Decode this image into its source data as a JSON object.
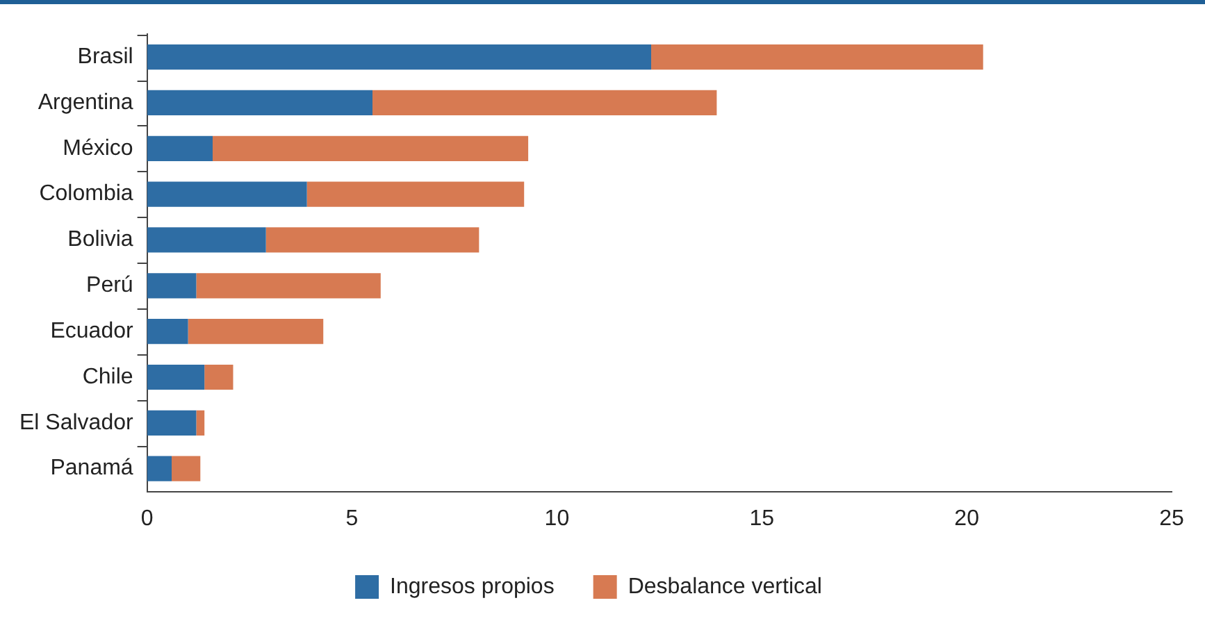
{
  "chart_data": {
    "type": "bar",
    "orientation": "horizontal",
    "stacked": true,
    "categories": [
      "Brasil",
      "Argentina",
      "México",
      "Colombia",
      "Bolivia",
      "Perú",
      "Ecuador",
      "Chile",
      "El Salvador",
      "Panamá"
    ],
    "series": [
      {
        "name": "Ingresos propios",
        "color": "#2e6da4",
        "values": [
          12.3,
          5.5,
          1.6,
          3.9,
          2.9,
          1.2,
          1.0,
          1.4,
          1.2,
          0.6
        ]
      },
      {
        "name": "Desbalance vertical",
        "color": "#d77a52",
        "values": [
          8.1,
          8.4,
          7.7,
          5.3,
          5.2,
          4.5,
          3.3,
          0.7,
          0.2,
          0.7
        ]
      }
    ],
    "xlim": [
      0,
      25
    ],
    "xticks": [
      0,
      5,
      10,
      15,
      20,
      25
    ],
    "grid": false,
    "legend": "bottom"
  }
}
